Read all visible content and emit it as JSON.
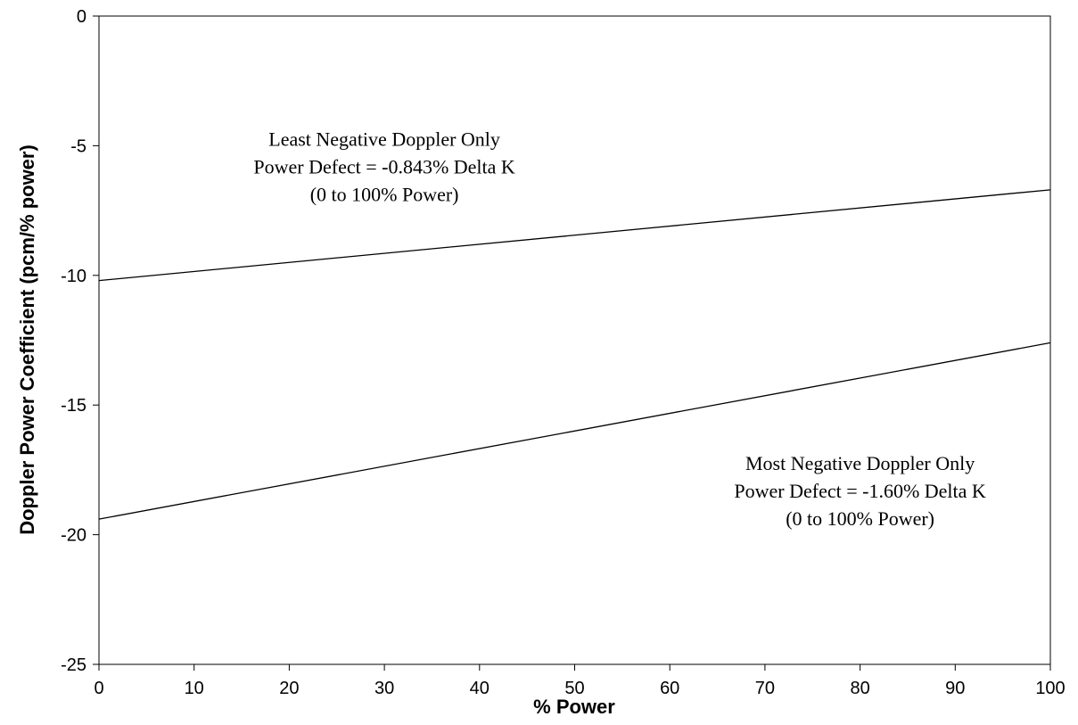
{
  "chart_data": {
    "type": "line",
    "title": "",
    "xlabel": "% Power",
    "ylabel": "Doppler Power Coefficient (pcm/% power)",
    "xlim": [
      0,
      100
    ],
    "ylim": [
      -25,
      0
    ],
    "xticks": [
      0,
      10,
      20,
      30,
      40,
      50,
      60,
      70,
      80,
      90,
      100
    ],
    "yticks": [
      0,
      -5,
      -10,
      -15,
      -20,
      -25
    ],
    "grid": false,
    "legend": "none",
    "series": [
      {
        "x": [
          0,
          100
        ],
        "y": [
          -10.2,
          -6.7
        ],
        "color": "#000000"
      },
      {
        "x": [
          0,
          100
        ],
        "y": [
          -19.4,
          -12.6
        ],
        "color": "#000000"
      }
    ],
    "annotations": [
      {
        "lines": [
          "Least Negative Doppler Only",
          "Power Defect = -0.843% Delta K",
          "(0 to 100% Power)"
        ],
        "x": 30,
        "y": -5
      },
      {
        "lines": [
          "Most Negative Doppler Only",
          "Power Defect = -1.60% Delta K",
          "(0 to 100% Power)"
        ],
        "x": 80,
        "y": -17.5
      }
    ]
  }
}
